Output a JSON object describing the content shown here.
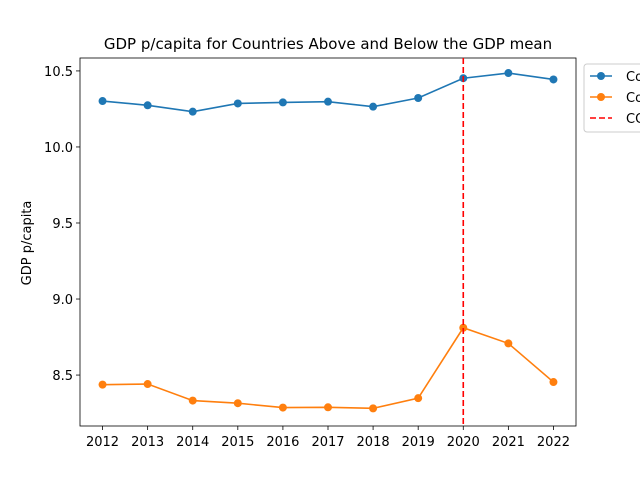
{
  "chart_data": {
    "type": "line",
    "title": "GDP p/capita for Countries Above and Below the GDP mean",
    "xlabel": "",
    "ylabel": "GDP p/capita",
    "x": [
      2012,
      2013,
      2014,
      2015,
      2016,
      2017,
      2018,
      2019,
      2020,
      2021,
      2022
    ],
    "x_tick_labels": [
      "2012",
      "2013",
      "2014",
      "2015",
      "2016",
      "2017",
      "2018",
      "2019",
      "2020",
      "2021",
      "2022"
    ],
    "ylim": [
      8.165,
      10.585
    ],
    "y_ticks": [
      8.5,
      9.0,
      9.5,
      10.0,
      10.5
    ],
    "y_tick_labels": [
      "8.5",
      "9.0",
      "9.5",
      "10.0",
      "10.5"
    ],
    "grid": false,
    "legend_position": "outside top-right",
    "series": [
      {
        "name": "Co",
        "color": "#1f77b4",
        "values": [
          10.302,
          10.274,
          10.232,
          10.286,
          10.293,
          10.298,
          10.265,
          10.322,
          10.452,
          10.486,
          10.444
        ]
      },
      {
        "name": "Co",
        "color": "#ff7f0e",
        "values": [
          8.437,
          8.441,
          8.332,
          8.315,
          8.286,
          8.288,
          8.281,
          8.348,
          8.811,
          8.708,
          8.454
        ]
      }
    ],
    "reference_lines": [
      {
        "orientation": "vertical",
        "x": 2020,
        "label": "CO",
        "color": "#ff0000",
        "style": "dashed"
      }
    ]
  }
}
